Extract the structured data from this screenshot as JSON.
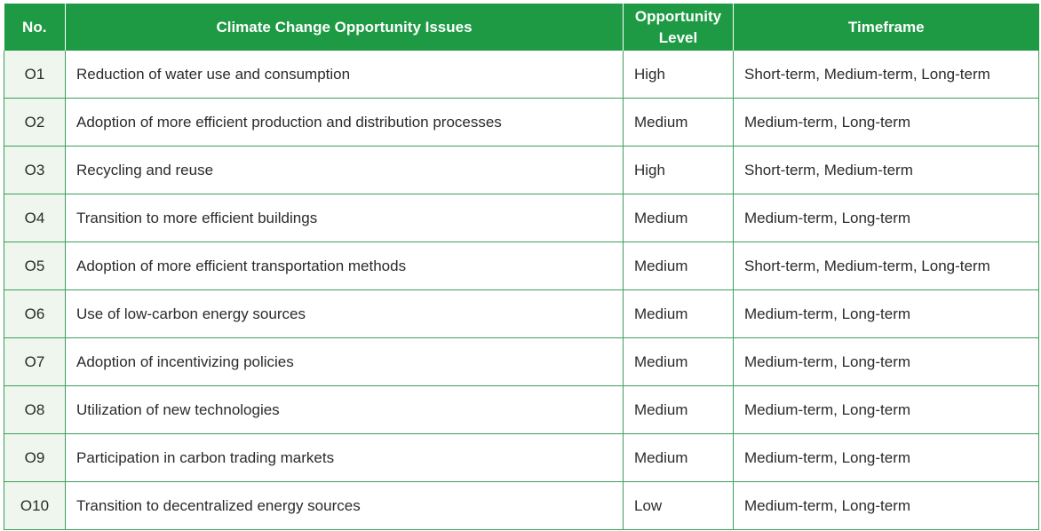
{
  "table": {
    "headers": {
      "no": "No.",
      "issue": "Climate Change Opportunity Issues",
      "level_line1": "Opportunity",
      "level_line2": "Level",
      "timeframe": "Timeframe"
    },
    "rows": [
      {
        "no": "O1",
        "issue": "Reduction of water use and consumption",
        "level": "High",
        "timeframe": "Short-term, Medium-term, Long-term"
      },
      {
        "no": "O2",
        "issue": "Adoption of more efficient production and distribution processes",
        "level": "Medium",
        "timeframe": "Medium-term, Long-term"
      },
      {
        "no": "O3",
        "issue": "Recycling and reuse",
        "level": "High",
        "timeframe": "Short-term, Medium-term"
      },
      {
        "no": "O4",
        "issue": "Transition to more efficient buildings",
        "level": "Medium",
        "timeframe": "Medium-term, Long-term"
      },
      {
        "no": "O5",
        "issue": "Adoption of more efficient transportation methods",
        "level": "Medium",
        "timeframe": "Short-term, Medium-term, Long-term"
      },
      {
        "no": "O6",
        "issue": "Use of low-carbon energy sources",
        "level": "Medium",
        "timeframe": "Medium-term, Long-term"
      },
      {
        "no": "O7",
        "issue": "Adoption of incentivizing policies",
        "level": "Medium",
        "timeframe": "Medium-term, Long-term"
      },
      {
        "no": "O8",
        "issue": "Utilization of new technologies",
        "level": "Medium",
        "timeframe": "Medium-term, Long-term"
      },
      {
        "no": "O9",
        "issue": "Participation in carbon trading markets",
        "level": "Medium",
        "timeframe": "Medium-term, Long-term"
      },
      {
        "no": "O10",
        "issue": "Transition to decentralized energy sources",
        "level": "Low",
        "timeframe": "Medium-term, Long-term"
      }
    ],
    "colors": {
      "header_bg": "#1e9a44",
      "header_text": "#ffffff",
      "border": "#3aa05a",
      "no_cell_bg": "#eef6ee"
    }
  }
}
